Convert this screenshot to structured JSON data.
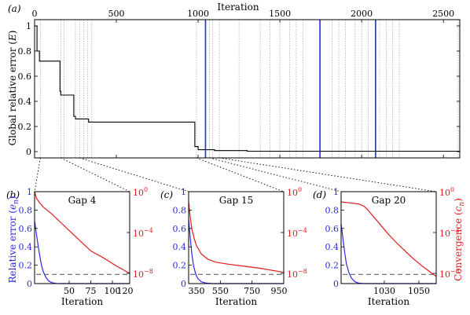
{
  "chart_data": [
    {
      "id": "a",
      "type": "line",
      "panel_label": "(a)",
      "xlabel": "Iteration",
      "ylabel": "Global relative error (E)",
      "xlim": [
        0,
        2600
      ],
      "ylim": [
        -0.05,
        1.05
      ],
      "xticks": [
        0,
        500,
        1000,
        1500,
        2000,
        2500
      ],
      "yticks": [
        0,
        0.2,
        0.4,
        0.6,
        0.8,
        1
      ],
      "ytick_labels": [
        "0",
        "0.2",
        "0.4",
        "0.6",
        "0.8",
        "1"
      ],
      "xticks_position": "top",
      "series": [
        {
          "color": "#000000",
          "x": [
            0,
            15,
            15,
            30,
            30,
            155,
            155,
            160,
            160,
            240,
            240,
            250,
            250,
            330,
            330,
            980,
            980,
            1000,
            1000,
            1100,
            1100,
            1300,
            1300,
            2600
          ],
          "y": [
            1.0,
            1.0,
            0.8,
            0.8,
            0.72,
            0.72,
            0.48,
            0.48,
            0.45,
            0.45,
            0.28,
            0.28,
            0.26,
            0.26,
            0.235,
            0.235,
            0.04,
            0.04,
            0.015,
            0.015,
            0.008,
            0.008,
            0.003,
            0.003
          ]
        }
      ],
      "gap_boundaries": [
        35,
        160,
        180,
        250,
        275,
        300,
        325,
        350,
        990,
        1070,
        1090,
        1130,
        1250,
        1380,
        1440,
        1500,
        1560,
        1600,
        1640,
        1820,
        1860,
        1900,
        1960,
        2000,
        2040,
        2110,
        2150,
        2190,
        2230,
        2590
      ],
      "highlighted_iterations": [
        1045,
        1745,
        2085
      ]
    },
    {
      "id": "b",
      "type": "line",
      "panel_label": "(b)",
      "title": "Gap 4",
      "xlabel": "Iteration",
      "ylabel_left": "Relative error (e_n)",
      "ylabel_left_base": "Relative error (",
      "ylabel_left_var": "e",
      "ylabel_left_sub": "n",
      "ylabel_left_end": ")",
      "xlim": [
        10,
        120
      ],
      "xticks": [
        50,
        75,
        100
      ],
      "xticks_extra": [
        120
      ],
      "ylim_left": [
        0,
        1
      ],
      "yticks_left": [
        0,
        0.2,
        0.4,
        0.6,
        0.8,
        1
      ],
      "ytick_labels_left": [
        "0",
        "0.2",
        "0.4",
        "0.6",
        "0.8",
        "1"
      ],
      "ylim_right_log": [
        -9,
        0
      ],
      "yticks_right": [
        "10^0",
        "10^-4",
        "10^-8"
      ],
      "threshold": 0.1,
      "series": [
        {
          "axis": "left",
          "color": "#2a2ae6",
          "x": [
            10,
            12,
            14,
            16,
            18,
            20,
            23,
            26,
            30,
            35,
            40,
            120
          ],
          "y": [
            0.68,
            0.55,
            0.42,
            0.3,
            0.2,
            0.13,
            0.07,
            0.03,
            0.01,
            0.002,
            0.0,
            0.0
          ]
        },
        {
          "axis": "right",
          "color": "#e01b1b",
          "x": [
            10,
            12,
            15,
            20,
            30,
            40,
            50,
            60,
            70,
            75,
            90,
            105,
            120
          ],
          "log10_y": [
            0.0,
            -0.6,
            -1.0,
            -1.5,
            -2.2,
            -3.0,
            -3.8,
            -4.6,
            -5.4,
            -5.8,
            -6.5,
            -7.3,
            -8.0
          ]
        }
      ]
    },
    {
      "id": "c",
      "type": "line",
      "panel_label": "(c)",
      "title": "Gap 15",
      "xlabel": "Iteration",
      "xlim": [
        350,
        950
      ],
      "xticks": [
        350,
        550,
        750,
        950
      ],
      "ylim_left": [
        0,
        1
      ],
      "yticks_left": [
        0,
        0.2,
        0.4,
        0.6,
        0.8,
        1
      ],
      "ytick_labels_left": [
        "0",
        "0.2",
        "0.4",
        "0.6",
        "0.8",
        "1"
      ],
      "ylim_right_log": [
        -9,
        0
      ],
      "yticks_right": [
        "10^0",
        "10^-4",
        "10^-8"
      ],
      "threshold": 0.1,
      "series": [
        {
          "axis": "left",
          "color": "#2a2ae6",
          "x": [
            350,
            360,
            370,
            380,
            395,
            410,
            430,
            460,
            500,
            950
          ],
          "y": [
            0.7,
            0.5,
            0.33,
            0.2,
            0.1,
            0.05,
            0.02,
            0.005,
            0.0,
            0.0
          ]
        },
        {
          "axis": "right",
          "color": "#e01b1b",
          "x": [
            350,
            360,
            370,
            385,
            400,
            430,
            470,
            520,
            600,
            700,
            800,
            950
          ],
          "log10_y": [
            -1.0,
            -2.5,
            -3.6,
            -4.6,
            -5.3,
            -6.1,
            -6.6,
            -6.9,
            -7.1,
            -7.3,
            -7.5,
            -7.9
          ]
        }
      ]
    },
    {
      "id": "d",
      "type": "line",
      "panel_label": "(d)",
      "title": "Gap 20",
      "xlabel": "Iteration",
      "ylabel_right": "Convergence (c_n)",
      "ylabel_right_base": "Convergence (",
      "ylabel_right_var": "c",
      "ylabel_right_sub": "n",
      "ylabel_right_end": ")",
      "xlim": [
        1005,
        1060
      ],
      "xticks": [
        1030,
        1050
      ],
      "ylim_left": [
        0,
        1
      ],
      "yticks_left": [
        0,
        0.2,
        0.4,
        0.6,
        0.8,
        1
      ],
      "ytick_labels_left": [
        "0",
        "0.2",
        "0.4",
        "0.6",
        "0.8",
        "1"
      ],
      "ylim_right_log": [
        -9,
        0
      ],
      "yticks_right": [
        "10^0",
        "10^-4",
        "10^-8"
      ],
      "threshold": 0.1,
      "series": [
        {
          "axis": "left",
          "color": "#2a2ae6",
          "x": [
            1005,
            1006,
            1007,
            1008,
            1009.5,
            1011,
            1013,
            1015,
            1018,
            1060
          ],
          "y": [
            0.65,
            0.5,
            0.35,
            0.22,
            0.12,
            0.06,
            0.02,
            0.006,
            0.0,
            0.0
          ]
        },
        {
          "axis": "right",
          "color": "#e01b1b",
          "x": [
            1005,
            1010,
            1015,
            1018,
            1020,
            1023,
            1027,
            1032,
            1037,
            1042,
            1047,
            1052,
            1056,
            1060
          ],
          "log10_y": [
            -1.0,
            -1.1,
            -1.2,
            -1.4,
            -1.7,
            -2.3,
            -3.1,
            -4.1,
            -5.0,
            -5.8,
            -6.6,
            -7.3,
            -7.8,
            -8.3
          ]
        }
      ]
    }
  ]
}
